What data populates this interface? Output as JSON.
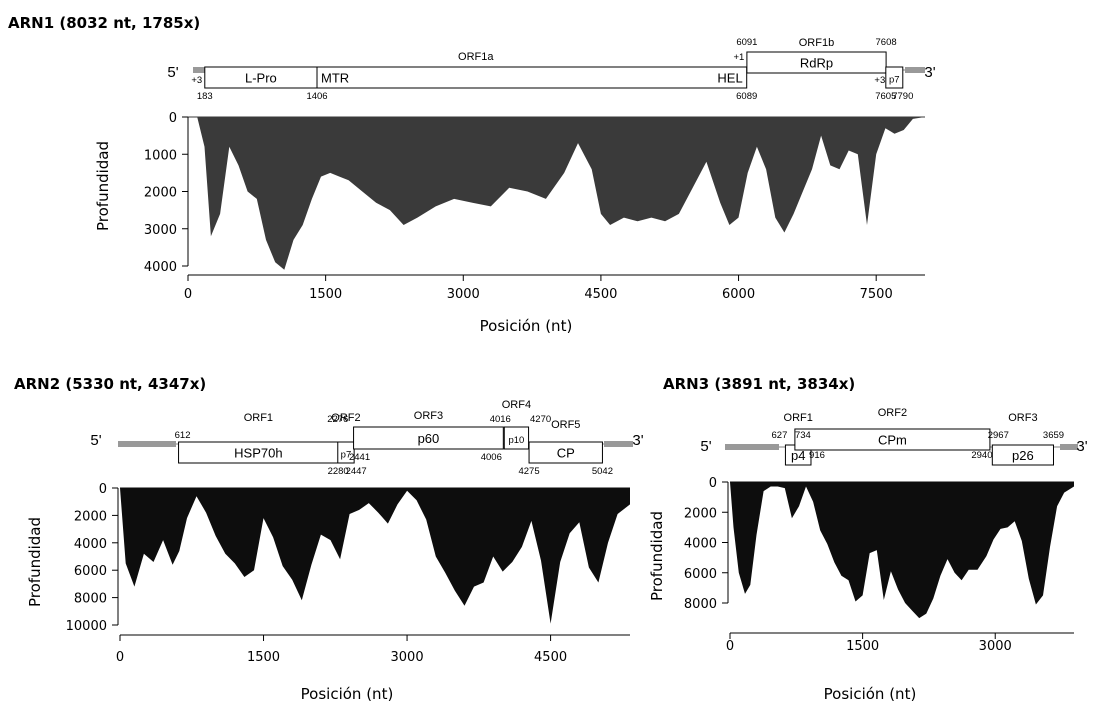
{
  "colors": {
    "panel1_fill": "#3a3a3a",
    "panel2_fill": "#0d0d0d",
    "panel3_fill": "#0d0d0d",
    "tail": "#999999"
  },
  "genome_labels": {
    "five": "5'",
    "three": "3'"
  },
  "chart_data": [
    {
      "id": "arn1",
      "type": "area",
      "title": "ARN1 (8032 nt, 1785x)",
      "xlabel": "Posición (nt)",
      "ylabel": "Profundidad",
      "xlim": [
        0,
        8032
      ],
      "ylim": [
        0,
        4000
      ],
      "y_inverted": true,
      "xticks": [
        0,
        1500,
        3000,
        4500,
        6000,
        7500
      ],
      "yticks": [
        0,
        1000,
        2000,
        3000,
        4000
      ],
      "x": [
        0,
        100,
        180,
        250,
        350,
        450,
        550,
        650,
        750,
        850,
        950,
        1050,
        1150,
        1250,
        1350,
        1450,
        1550,
        1650,
        1750,
        1900,
        2050,
        2200,
        2350,
        2500,
        2700,
        2900,
        3100,
        3300,
        3500,
        3700,
        3900,
        4100,
        4250,
        4400,
        4500,
        4600,
        4750,
        4900,
        5050,
        5200,
        5350,
        5500,
        5650,
        5800,
        5900,
        6000,
        6100,
        6200,
        6300,
        6400,
        6500,
        6600,
        6700,
        6800,
        6900,
        7000,
        7100,
        7200,
        7300,
        7400,
        7500,
        7600,
        7700,
        7800,
        7900,
        8032
      ],
      "values": [
        0,
        0,
        800,
        3200,
        2600,
        800,
        1300,
        2000,
        2200,
        3300,
        3900,
        4100,
        3300,
        2900,
        2200,
        1600,
        1500,
        1600,
        1700,
        2000,
        2300,
        2500,
        2900,
        2700,
        2400,
        2200,
        2300,
        2400,
        1900,
        2000,
        2200,
        1500,
        700,
        1400,
        2600,
        2900,
        2700,
        2800,
        2700,
        2800,
        2600,
        1900,
        1200,
        2300,
        2900,
        2700,
        1500,
        800,
        1400,
        2700,
        3100,
        2600,
        2000,
        1400,
        500,
        1300,
        1400,
        900,
        1000,
        2900,
        1000,
        300,
        450,
        350,
        50,
        0
      ],
      "annotation": {
        "orfs": [
          {
            "label": "ORF1a",
            "start": 183,
            "end": 6089
          },
          {
            "label": "ORF1b",
            "start": 6091,
            "end": 7608
          }
        ],
        "boxes": [
          {
            "label": "L-Pro",
            "start": 183,
            "end": 1406,
            "level": "low"
          },
          {
            "label": "MTR",
            "start": 1406,
            "end": 6089,
            "level": "low",
            "label_at": "left"
          },
          {
            "label": "HEL",
            "start": 1406,
            "end": 6089,
            "level": "low",
            "label_at": "right"
          },
          {
            "label": "RdRp",
            "start": 6091,
            "end": 7608,
            "level": "high"
          },
          {
            "label": "p7",
            "start": 7605,
            "end": 7790,
            "level": "low"
          }
        ],
        "numbers": [
          {
            "text": "+3",
            "pos": 183,
            "row": "mid"
          },
          {
            "text": "183",
            "pos": 183,
            "row": "bottom"
          },
          {
            "text": "1406",
            "pos": 1406,
            "row": "bottom"
          },
          {
            "text": "6089",
            "pos": 6089,
            "row": "bottom"
          },
          {
            "text": "+1",
            "pos": 6091,
            "row": "upper"
          },
          {
            "text": "6091",
            "pos": 6091,
            "row": "top"
          },
          {
            "text": "7608",
            "pos": 7608,
            "row": "top"
          },
          {
            "text": "+3",
            "pos": 7605,
            "row": "lower"
          },
          {
            "text": "7605",
            "pos": 7605,
            "row": "bottom"
          },
          {
            "text": "7790",
            "pos": 7790,
            "row": "bottom"
          }
        ]
      }
    },
    {
      "id": "arn2",
      "type": "area",
      "title": "ARN2 (5330 nt, 4347x)",
      "xlabel": "Posición (nt)",
      "ylabel": "Profundidad",
      "xlim": [
        0,
        5330
      ],
      "ylim": [
        0,
        10000
      ],
      "y_inverted": true,
      "xticks": [
        0,
        1500,
        3000,
        4500
      ],
      "yticks": [
        0,
        2000,
        4000,
        6000,
        8000,
        10000
      ],
      "x": [
        0,
        60,
        150,
        250,
        350,
        450,
        550,
        620,
        700,
        800,
        900,
        1000,
        1100,
        1200,
        1300,
        1400,
        1500,
        1600,
        1700,
        1800,
        1900,
        2000,
        2100,
        2200,
        2300,
        2400,
        2500,
        2600,
        2700,
        2800,
        2900,
        3000,
        3100,
        3200,
        3300,
        3400,
        3500,
        3600,
        3700,
        3800,
        3900,
        4000,
        4100,
        4200,
        4300,
        4400,
        4500,
        4600,
        4700,
        4800,
        4900,
        5000,
        5100,
        5200,
        5330
      ],
      "values": [
        0,
        5500,
        7200,
        4800,
        5400,
        3800,
        5600,
        4600,
        2200,
        600,
        1800,
        3500,
        4800,
        5500,
        6500,
        6000,
        2200,
        3600,
        5700,
        6700,
        8200,
        5600,
        3400,
        3800,
        5200,
        1900,
        1600,
        1100,
        1800,
        2600,
        1200,
        200,
        900,
        2300,
        5000,
        6200,
        7500,
        8600,
        7200,
        6900,
        5000,
        6100,
        5400,
        4300,
        2400,
        5300,
        9900,
        5400,
        3300,
        2500,
        5800,
        6900,
        4000,
        1900,
        1200
      ],
      "annotation": {
        "orfs": [
          {
            "label": "ORF1",
            "start": 612,
            "end": 2280
          },
          {
            "label": "ORF2",
            "start": 2276,
            "end": 2447
          },
          {
            "label": "ORF3",
            "start": 2441,
            "end": 4006
          },
          {
            "label": "ORF4",
            "start": 4016,
            "end": 4270
          },
          {
            "label": "ORF5",
            "start": 4275,
            "end": 5042
          }
        ],
        "boxes": [
          {
            "label": "HSP70h",
            "start": 612,
            "end": 2280,
            "level": "low"
          },
          {
            "label": "p7",
            "start": 2276,
            "end": 2447,
            "level": "low"
          },
          {
            "label": "p60",
            "start": 2441,
            "end": 4006,
            "level": "high"
          },
          {
            "label": "p10",
            "start": 4016,
            "end": 4270,
            "level": "high"
          },
          {
            "label": "CP",
            "start": 4275,
            "end": 5042,
            "level": "low"
          }
        ],
        "numbers": [
          {
            "text": "612",
            "pos": 612,
            "row": "mid"
          },
          {
            "text": "2276",
            "pos": 2276,
            "row": "top"
          },
          {
            "text": "2280",
            "pos": 2280,
            "row": "bottom"
          },
          {
            "text": "2441",
            "pos": 2441,
            "row": "lower"
          },
          {
            "text": "2447",
            "pos": 2447,
            "row": "bottom2"
          },
          {
            "text": "4006",
            "pos": 4006,
            "row": "lower"
          },
          {
            "text": "4016",
            "pos": 4016,
            "row": "top"
          },
          {
            "text": "4270",
            "pos": 4270,
            "row": "top"
          },
          {
            "text": "4275",
            "pos": 4275,
            "row": "bottom"
          },
          {
            "text": "5042",
            "pos": 5042,
            "row": "bottom2"
          }
        ]
      }
    },
    {
      "id": "arn3",
      "type": "area",
      "title": "ARN3 (3891 nt, 3834x)",
      "xlabel": "Posición (nt)",
      "ylabel": "Profundidad",
      "xlim": [
        0,
        3891
      ],
      "ylim": [
        0,
        8000
      ],
      "y_inverted": true,
      "xticks": [
        0,
        1500,
        3000
      ],
      "yticks": [
        0,
        2000,
        4000,
        6000,
        8000
      ],
      "x": [
        0,
        40,
        100,
        170,
        230,
        300,
        380,
        460,
        540,
        620,
        700,
        780,
        860,
        940,
        1020,
        1100,
        1180,
        1260,
        1340,
        1420,
        1500,
        1580,
        1660,
        1740,
        1820,
        1900,
        1980,
        2060,
        2140,
        2220,
        2300,
        2380,
        2460,
        2540,
        2620,
        2700,
        2800,
        2900,
        2980,
        3060,
        3140,
        3220,
        3300,
        3380,
        3460,
        3540,
        3620,
        3700,
        3780,
        3891
      ],
      "values": [
        0,
        3000,
        6000,
        7400,
        6800,
        3500,
        600,
        300,
        300,
        400,
        2400,
        1600,
        300,
        1300,
        3200,
        4100,
        5300,
        6200,
        6500,
        7900,
        7500,
        4700,
        4500,
        7800,
        5900,
        7100,
        8000,
        8500,
        9000,
        8700,
        7700,
        6200,
        5100,
        6000,
        6500,
        5800,
        5800,
        4900,
        3800,
        3100,
        3000,
        2600,
        3900,
        6400,
        8100,
        7500,
        4300,
        1600,
        700,
        300
      ],
      "annotation": {
        "orfs": [
          {
            "label": "ORF1",
            "start": 627,
            "end": 916
          },
          {
            "label": "ORF2",
            "start": 734,
            "end": 2940
          },
          {
            "label": "ORF3",
            "start": 2967,
            "end": 3659
          }
        ],
        "boxes": [
          {
            "label": "p4",
            "start": 627,
            "end": 916,
            "level": "low"
          },
          {
            "label": "CPm",
            "start": 734,
            "end": 2940,
            "level": "high"
          },
          {
            "label": "p26",
            "start": 2967,
            "end": 3659,
            "level": "low"
          }
        ],
        "numbers": [
          {
            "text": "627",
            "pos": 627,
            "row": "top"
          },
          {
            "text": "734",
            "pos": 734,
            "row": "top"
          },
          {
            "text": "916",
            "pos": 916,
            "row": "lower"
          },
          {
            "text": "2940",
            "pos": 2940,
            "row": "lower"
          },
          {
            "text": "2967",
            "pos": 2967,
            "row": "top"
          },
          {
            "text": "3659",
            "pos": 3659,
            "row": "top"
          }
        ]
      }
    }
  ]
}
